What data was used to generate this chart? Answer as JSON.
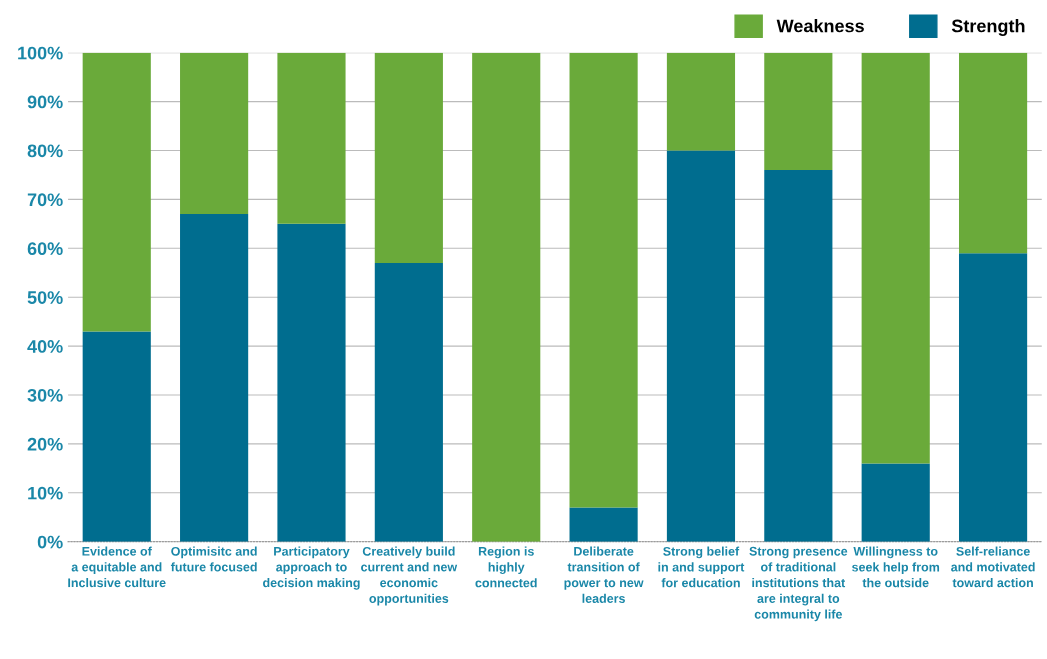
{
  "chart_data": {
    "type": "bar",
    "stacked": true,
    "categories": [
      "Evidence of\na equitable and\nInclusive culture",
      "Optimisitc and\nfuture focused",
      "Participatory\napproach to\ndecision making",
      "Creatively build\ncurrent and new\neconomic\nopportunities",
      "Region is\nhighly\nconnected",
      "Deliberate\ntransition of\npower to new\nleaders",
      "Strong belief\nin and support\nfor education",
      "Strong presence\nof traditional\ninstitutions that\nare integral to\ncommunity life",
      "Willingness to\nseek help from\nthe outside",
      "Self-reliance\nand motivated\ntoward action"
    ],
    "series": [
      {
        "name": "Strength",
        "color": "#006d8f",
        "values": [
          43,
          67,
          65,
          57,
          0,
          7,
          80,
          76,
          16,
          59
        ]
      },
      {
        "name": "Weakness",
        "color": "#6aaa3a",
        "values": [
          57,
          33,
          35,
          43,
          100,
          93,
          20,
          24,
          84,
          41
        ]
      }
    ],
    "ylim": [
      0,
      100
    ],
    "yticks": [
      {
        "value": 0,
        "label": "0%"
      },
      {
        "value": 10,
        "label": "10%"
      },
      {
        "value": 20,
        "label": "20%"
      },
      {
        "value": 30,
        "label": "30%"
      },
      {
        "value": 40,
        "label": "40%"
      },
      {
        "value": 50,
        "label": "50%"
      },
      {
        "value": 60,
        "label": "60%"
      },
      {
        "value": 70,
        "label": "70%"
      },
      {
        "value": 80,
        "label": "80%"
      },
      {
        "value": 90,
        "label": "90%"
      },
      {
        "value": 100,
        "label": "100%"
      }
    ],
    "grid": "y",
    "legend": "top right"
  }
}
